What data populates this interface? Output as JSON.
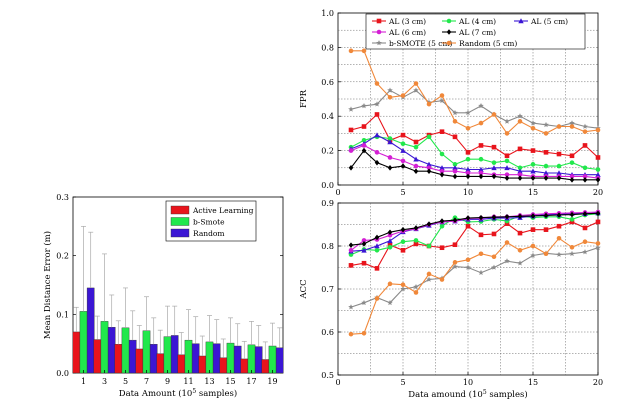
{
  "chart_data": [
    {
      "type": "bar",
      "ylabel": "Mean Distance Error (m)",
      "xlabel": "Data Amount (10",
      "xlabel_sup": "5",
      "xlabel_tail": " samples)",
      "ylim": [
        0,
        0.3
      ],
      "yticks": [
        "0.0",
        "0.1",
        "0.2",
        "0.3"
      ],
      "categories": [
        "1",
        "3",
        "5",
        "7",
        "9",
        "11",
        "13",
        "15",
        "17",
        "19"
      ],
      "legend_position": "top-right",
      "series": [
        {
          "name": "Active Learning",
          "color": "#e8141c",
          "values": [
            0.07,
            0.057,
            0.049,
            0.041,
            0.033,
            0.031,
            0.029,
            0.026,
            0.024,
            0.023
          ],
          "errors": [
            0.042,
            0.04,
            0.04,
            0.04,
            0.04,
            0.038,
            0.034,
            0.032,
            0.03,
            0.03
          ]
        },
        {
          "name": "b-Smote",
          "color": "#21e84c",
          "values": [
            0.105,
            0.088,
            0.077,
            0.072,
            0.062,
            0.056,
            0.053,
            0.051,
            0.048,
            0.046
          ],
          "errors": [
            0.145,
            0.115,
            0.068,
            0.058,
            0.052,
            0.052,
            0.045,
            0.043,
            0.04,
            0.039
          ]
        },
        {
          "name": "Random",
          "color": "#3b16d4",
          "values": [
            0.145,
            0.078,
            0.056,
            0.049,
            0.064,
            0.05,
            0.05,
            0.046,
            0.045,
            0.043
          ],
          "errors": [
            0.095,
            0.055,
            0.05,
            0.045,
            0.05,
            0.046,
            0.041,
            0.038,
            0.036,
            0.034
          ]
        }
      ]
    },
    {
      "type": "line",
      "ylabel": "FPR",
      "xlim": [
        0,
        20
      ],
      "ylim": [
        0,
        1.0
      ],
      "xticks": [
        "0",
        "5",
        "10",
        "15",
        "20"
      ],
      "yticks": [
        "0.0",
        "0.2",
        "0.4",
        "0.6",
        "0.8",
        "1.0"
      ],
      "legend_position": "top",
      "x": [
        1,
        2,
        3,
        4,
        5,
        6,
        7,
        8,
        9,
        10,
        11,
        12,
        13,
        14,
        15,
        16,
        17,
        18,
        19,
        20
      ],
      "series": [
        {
          "name": "AL (3 cm)",
          "color": "#e8141c",
          "marker": "square",
          "values": [
            0.32,
            0.34,
            0.41,
            0.26,
            0.29,
            0.25,
            0.29,
            0.31,
            0.28,
            0.19,
            0.23,
            0.22,
            0.17,
            0.21,
            0.2,
            0.19,
            0.18,
            0.17,
            0.23,
            0.16
          ]
        },
        {
          "name": "AL (4 cm)",
          "color": "#21e84c",
          "marker": "circle",
          "values": [
            0.22,
            0.26,
            0.28,
            0.27,
            0.24,
            0.22,
            0.28,
            0.18,
            0.12,
            0.15,
            0.15,
            0.13,
            0.14,
            0.1,
            0.12,
            0.11,
            0.11,
            0.13,
            0.1,
            0.09
          ]
        },
        {
          "name": "AL (5 cm)",
          "color": "#3b16d4",
          "marker": "triangle",
          "values": [
            0.21,
            0.24,
            0.29,
            0.25,
            0.2,
            0.15,
            0.12,
            0.1,
            0.1,
            0.09,
            0.09,
            0.1,
            0.1,
            0.08,
            0.08,
            0.07,
            0.07,
            0.06,
            0.06,
            0.06
          ]
        },
        {
          "name": "AL (6 cm)",
          "color": "#d41fd4",
          "marker": "circle",
          "values": [
            0.2,
            0.23,
            0.19,
            0.16,
            0.14,
            0.11,
            0.1,
            0.08,
            0.08,
            0.07,
            0.07,
            0.06,
            0.06,
            0.06,
            0.05,
            0.05,
            0.05,
            0.05,
            0.05,
            0.04
          ]
        },
        {
          "name": "AL (7 cm)",
          "color": "#000000",
          "marker": "diamond",
          "values": [
            0.1,
            0.2,
            0.13,
            0.1,
            0.11,
            0.08,
            0.08,
            0.06,
            0.05,
            0.05,
            0.05,
            0.05,
            0.04,
            0.04,
            0.04,
            0.04,
            0.04,
            0.03,
            0.03,
            0.03
          ]
        },
        {
          "name": "b-SMOTE (5 cm)",
          "color": "#8a8a8a",
          "marker": "star",
          "values": [
            0.44,
            0.46,
            0.47,
            0.55,
            0.51,
            0.55,
            0.48,
            0.49,
            0.42,
            0.42,
            0.46,
            0.41,
            0.37,
            0.4,
            0.36,
            0.35,
            0.34,
            0.36,
            0.34,
            0.33
          ]
        },
        {
          "name": "Random (5 cm)",
          "color": "#f0883a",
          "marker": "circle",
          "values": [
            0.78,
            0.78,
            0.59,
            0.51,
            0.52,
            0.59,
            0.47,
            0.52,
            0.37,
            0.33,
            0.36,
            0.41,
            0.3,
            0.37,
            0.33,
            0.3,
            0.34,
            0.34,
            0.31,
            0.32
          ]
        }
      ]
    },
    {
      "type": "line",
      "ylabel": "ACC",
      "xlabel": "Data amound (10",
      "xlabel_sup": "5",
      "xlabel_tail": " samples)",
      "xlim": [
        0,
        20
      ],
      "ylim": [
        0.5,
        0.9
      ],
      "xticks": [
        "0",
        "5",
        "10",
        "15",
        "20"
      ],
      "yticks": [
        "0.5",
        "0.6",
        "0.7",
        "0.8",
        "0.9"
      ],
      "x": [
        1,
        2,
        3,
        4,
        5,
        6,
        7,
        8,
        9,
        10,
        11,
        12,
        13,
        14,
        15,
        16,
        17,
        18,
        19,
        20
      ],
      "series": [
        {
          "name": "AL (3 cm)",
          "color": "#e8141c",
          "marker": "square",
          "values": [
            0.755,
            0.76,
            0.748,
            0.802,
            0.79,
            0.805,
            0.8,
            0.796,
            0.803,
            0.846,
            0.826,
            0.828,
            0.852,
            0.83,
            0.838,
            0.838,
            0.846,
            0.856,
            0.842,
            0.856
          ]
        },
        {
          "name": "AL (4 cm)",
          "color": "#21e84c",
          "marker": "circle",
          "values": [
            0.78,
            0.792,
            0.79,
            0.797,
            0.81,
            0.813,
            0.8,
            0.846,
            0.866,
            0.856,
            0.857,
            0.862,
            0.858,
            0.87,
            0.866,
            0.868,
            0.868,
            0.862,
            0.872,
            0.875
          ]
        },
        {
          "name": "AL (5 cm)",
          "color": "#3b16d4",
          "marker": "triangle",
          "values": [
            0.788,
            0.79,
            0.8,
            0.812,
            0.833,
            0.84,
            0.848,
            0.856,
            0.858,
            0.862,
            0.862,
            0.865,
            0.865,
            0.866,
            0.87,
            0.873,
            0.873,
            0.876,
            0.875,
            0.877
          ]
        },
        {
          "name": "AL (6 cm)",
          "color": "#d41fd4",
          "marker": "circle",
          "values": [
            0.79,
            0.813,
            0.815,
            0.825,
            0.835,
            0.84,
            0.85,
            0.856,
            0.858,
            0.864,
            0.865,
            0.868,
            0.868,
            0.871,
            0.873,
            0.875,
            0.876,
            0.877,
            0.878,
            0.879
          ]
        },
        {
          "name": "AL (7 cm)",
          "color": "#000000",
          "marker": "diamond",
          "values": [
            0.802,
            0.805,
            0.82,
            0.832,
            0.838,
            0.842,
            0.851,
            0.858,
            0.86,
            0.865,
            0.866,
            0.867,
            0.868,
            0.869,
            0.87,
            0.871,
            0.872,
            0.873,
            0.875,
            0.876
          ]
        },
        {
          "name": "b-SMOTE (5 cm)",
          "color": "#8a8a8a",
          "marker": "star",
          "values": [
            0.658,
            0.668,
            0.68,
            0.668,
            0.7,
            0.705,
            0.722,
            0.725,
            0.752,
            0.75,
            0.738,
            0.75,
            0.765,
            0.76,
            0.778,
            0.783,
            0.78,
            0.782,
            0.786,
            0.796
          ]
        },
        {
          "name": "Random (5 cm)",
          "color": "#f0883a",
          "marker": "circle",
          "values": [
            0.595,
            0.597,
            0.678,
            0.712,
            0.71,
            0.692,
            0.735,
            0.722,
            0.762,
            0.768,
            0.782,
            0.775,
            0.808,
            0.79,
            0.8,
            0.782,
            0.818,
            0.797,
            0.81,
            0.806
          ]
        }
      ]
    }
  ]
}
